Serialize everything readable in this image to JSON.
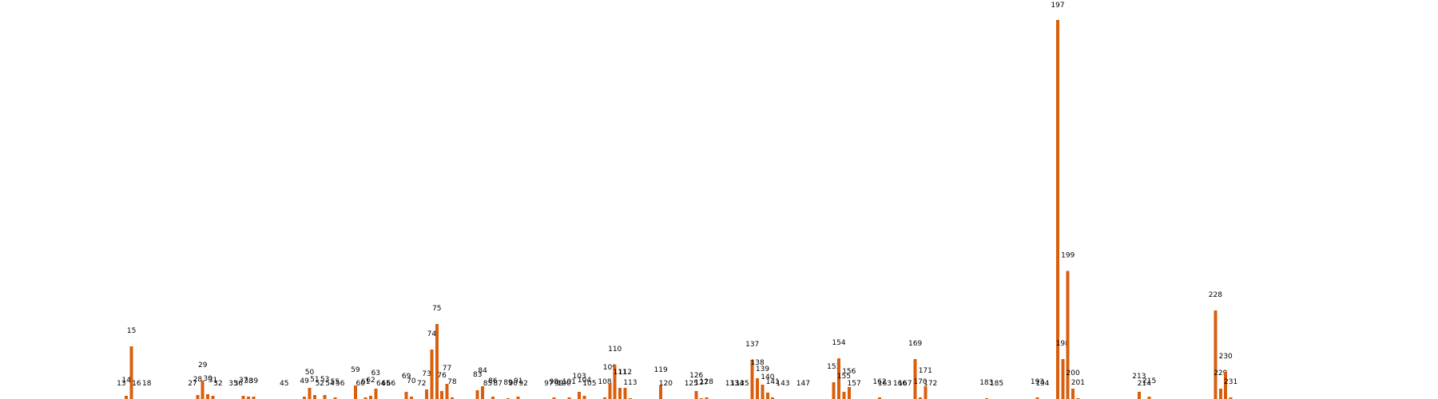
{
  "chart_data": {
    "type": "bar",
    "bar_color": "#d95f0e",
    "x_range": [
      0,
      270
    ],
    "y_range": [
      0,
      480
    ],
    "axes_visible": false,
    "grid": false,
    "labels_shown": "x value above each bar",
    "x": [
      13,
      14,
      15,
      16,
      18,
      27,
      28,
      29,
      30,
      31,
      32,
      35,
      36,
      37,
      38,
      39,
      45,
      49,
      50,
      51,
      52,
      53,
      54,
      55,
      56,
      59,
      60,
      61,
      62,
      63,
      64,
      65,
      66,
      69,
      70,
      72,
      73,
      74,
      75,
      76,
      77,
      78,
      83,
      84,
      85,
      86,
      87,
      89,
      90,
      91,
      92,
      97,
      98,
      99,
      100,
      101,
      103,
      104,
      105,
      108,
      109,
      110,
      111,
      112,
      113,
      119,
      120,
      125,
      126,
      127,
      128,
      133,
      134,
      135,
      137,
      138,
      139,
      140,
      141,
      143,
      147,
      153,
      154,
      155,
      156,
      157,
      162,
      163,
      166,
      167,
      169,
      170,
      171,
      172,
      183,
      185,
      193,
      194,
      197,
      198,
      199,
      200,
      201,
      213,
      214,
      215,
      228,
      229,
      230,
      231
    ],
    "labels": [
      "13",
      "14",
      "15",
      "16",
      "18",
      "27",
      "28",
      "29",
      "30",
      "31",
      "32",
      "35",
      "36",
      "37",
      "38",
      "39",
      "45",
      "49",
      "50",
      "51",
      "52",
      "53",
      "54",
      "55",
      "56",
      "59",
      "60",
      "61",
      "62",
      "63",
      "64",
      "65",
      "66",
      "69",
      "70",
      "72",
      "73",
      "74",
      "75",
      "76",
      "77",
      "78",
      "83",
      "84",
      "85",
      "86",
      "87",
      "89",
      "90",
      "91",
      "92",
      "97",
      "98",
      "99",
      "100",
      "101",
      "103",
      "104",
      "105",
      "108",
      "109",
      "110",
      "111",
      "112",
      "113",
      "119",
      "120",
      "125",
      "126",
      "127",
      "128",
      "133",
      "134",
      "135",
      "137",
      "138",
      "139",
      "140",
      "141",
      "143",
      "147",
      "153",
      "154",
      "155",
      "156",
      "157",
      "162",
      "163",
      "166",
      "167",
      "169",
      "170",
      "171",
      "172",
      "183",
      "185",
      "193",
      "194",
      "197",
      "198",
      "199",
      "200",
      "201",
      "213",
      "214",
      "215",
      "228",
      "229",
      "230",
      "231"
    ],
    "values": [
      2,
      6,
      68,
      2,
      2,
      2,
      7,
      25,
      8,
      6,
      2,
      2,
      2,
      6,
      5,
      5,
      2,
      5,
      16,
      7,
      2,
      7,
      2,
      4,
      2,
      19,
      2,
      4,
      6,
      15,
      2,
      2,
      2,
      11,
      5,
      2,
      14,
      64,
      96,
      12,
      21,
      4,
      13,
      18,
      2,
      5,
      2,
      3,
      2,
      5,
      2,
      2,
      4,
      2,
      2,
      4,
      11,
      6,
      2,
      4,
      22,
      45,
      16,
      16,
      3,
      19,
      2,
      2,
      12,
      3,
      4,
      2,
      2,
      2,
      51,
      28,
      20,
      10,
      4,
      2,
      2,
      23,
      53,
      11,
      17,
      2,
      4,
      2,
      2,
      2,
      52,
      4,
      18,
      2,
      3,
      2,
      4,
      2,
      478,
      52,
      163,
      15,
      3,
      11,
      2,
      5,
      113,
      15,
      36,
      4
    ]
  }
}
